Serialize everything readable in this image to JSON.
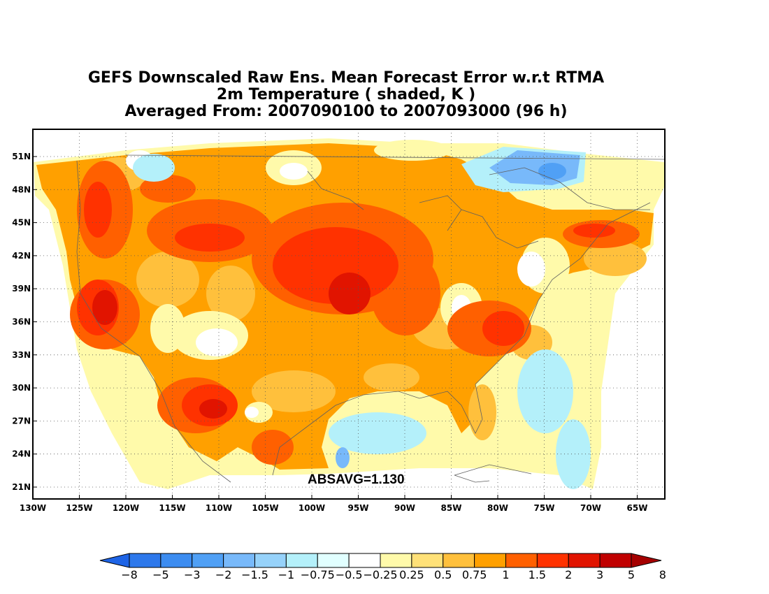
{
  "title": {
    "line1": "GEFS Downscaled Raw Ens. Mean Forecast Error w.r.t RTMA",
    "line2": "2m Temperature ( shaded, K )",
    "line3": "Averaged From: 2007090100 to 2007093000 (96 h)"
  },
  "stat_label": "ABSAVG=1.130",
  "map": {
    "lon_ticks": [
      "130W",
      "125W",
      "120W",
      "115W",
      "110W",
      "105W",
      "100W",
      "95W",
      "90W",
      "85W",
      "80W",
      "75W",
      "70W",
      "65W"
    ],
    "lat_ticks": [
      "51N",
      "48N",
      "45N",
      "42N",
      "39N",
      "36N",
      "33N",
      "30N",
      "27N",
      "24N",
      "21N"
    ]
  },
  "colorbar": {
    "labels": [
      "-8",
      "-5",
      "-3",
      "-2",
      "-1.5",
      "-1",
      "-0.75",
      "-0.5",
      "-0.25",
      "0.25",
      "0.5",
      "0.75",
      "1",
      "1.5",
      "2",
      "3",
      "5",
      "8"
    ],
    "colors": [
      "#1e64e6",
      "#2d78eb",
      "#3c8cf0",
      "#50a0f5",
      "#78b9fa",
      "#96d2fa",
      "#b4f0fa",
      "#e1ffff",
      "#ffffff",
      "#fffaaa",
      "#ffe178",
      "#ffc03c",
      "#ffa000",
      "#ff6000",
      "#ff3200",
      "#e11400",
      "#c00000",
      "#a50000"
    ]
  },
  "field_colors": {
    "land_bg": "#ffa000",
    "ocean_bg": "#ffffff",
    "strong_warm": "#ff6000",
    "very_warm": "#ff3200",
    "hot": "#e11400",
    "mild": "#ffc03c",
    "slight": "#ffe178",
    "weak": "#fffaaa",
    "cool": "#b4f0fa",
    "cold": "#78b9fa",
    "colder": "#50a0f5"
  }
}
